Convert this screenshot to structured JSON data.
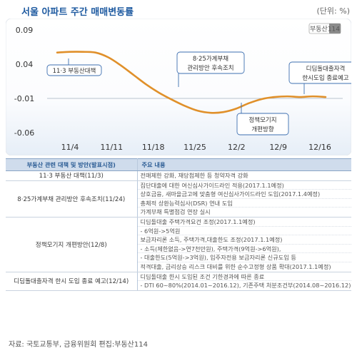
{
  "title": "서울 아파트 주간 매매변동률",
  "unit": "(단위: %)",
  "logo": "부동산114",
  "chart_data": {
    "type": "line",
    "categories": [
      "11/4",
      "11/11",
      "11/18",
      "11/25",
      "12/2",
      "12/9",
      "12/16"
    ],
    "x": [
      1,
      2,
      3,
      4,
      5,
      6,
      7,
      8,
      9,
      10,
      11,
      12,
      13,
      14,
      15,
      16,
      17,
      18,
      19,
      20,
      21,
      22
    ],
    "series": [
      {
        "color": "#e0902a",
        "values": [
          0.057,
          0.058,
          0.058,
          0.057,
          0.05,
          0.038,
          0.024,
          0.01,
          -0.002,
          -0.012,
          -0.021,
          -0.028,
          -0.031,
          -0.03,
          -0.025,
          -0.017,
          -0.011,
          -0.008,
          -0.007,
          -0.008,
          -0.007,
          -0.008
        ]
      }
    ],
    "yticks": [
      "0.09",
      "0.04",
      "-0.01",
      "-0.06"
    ],
    "ylim": [
      -0.06,
      0.09
    ],
    "xlabel": "",
    "ylabel": "",
    "grid": false,
    "annotations": [
      {
        "text": "11·3 부동산대책"
      },
      {
        "text": "8·25가계부채 관리방안 후속조치"
      },
      {
        "text": "정책모기지 개편방향"
      },
      {
        "text": "디딤돌대출자격 한시도입 종료예고"
      }
    ]
  },
  "table": {
    "header_left": "부동산 관련 대책 및 방안(발표시점)",
    "header_right": "주요 내용",
    "rows": [
      {
        "category": "11·3 부동산 대책(11/3)",
        "lines": [
          "전매제한 강화, 재당첨제한 등 청약자격 강화"
        ]
      },
      {
        "category": "8·25가계부채 관리방안 후속조치(11/24)",
        "lines": [
          "집단대출에 대한 여신심사가이드라인 적용(2017.1.1예정)",
          "상호금융, 새마을금고에 맞춤형 여신심사가이드라인 도입(2017.1.4예정)",
          "총체적 상환능력심사(DSR) 연내 도입",
          "가계부채 특별점검 연장 실시"
        ]
      },
      {
        "category": "정책모기지 개편방안(12/8)",
        "lines": [
          "디딤돌대출 주택가격요건 조정(2017.1.1예정)",
          "- 6억원->5억원",
          "보금자리론 소득, 주택가격,대출한도 조정(2017.1.1예정)",
          "- 소득(제한없음->연7천만원), 주택가격(9억원->6억원),",
          "- 대출한도(5억원->3억원), 입주자전용 보금자리론 신규도입 등",
          "적격대출, 금리상승 리스크 대비를 위한 순수고정형 상품 확대(2017.1.1예정)"
        ]
      },
      {
        "category": "디딤돌대출자격 한시 도입 종료 예고(12/14)",
        "lines": [
          "디딤돌대출 한시 도입된 조건 기한경과에 따른 종료",
          "- DTI 60~80%(2014.01~2016.12), 기존주택 처분조건부(2014.08~2016.12)"
        ]
      }
    ]
  },
  "source": "자료: 국토교통부, 금융위원회 편집:부동산114"
}
